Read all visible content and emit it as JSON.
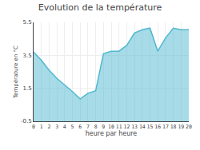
{
  "chart_data": {
    "type": "area",
    "title": "Evolution de la température",
    "xlabel": "heure par heure",
    "ylabel": "Température en °C",
    "x": [
      0,
      1,
      2,
      3,
      4,
      5,
      6,
      7,
      8,
      9,
      10,
      11,
      12,
      13,
      14,
      15,
      16,
      17,
      18,
      19,
      20
    ],
    "values": [
      3.7,
      3.2,
      2.6,
      2.1,
      1.7,
      1.3,
      0.85,
      1.2,
      1.35,
      3.6,
      3.75,
      3.75,
      4.1,
      4.85,
      5.05,
      5.15,
      3.75,
      4.55,
      5.15,
      5.05,
      5.05
    ],
    "color": "#50b8d0",
    "xlim": [
      0,
      20
    ],
    "xticks": [
      0,
      1,
      2,
      3,
      4,
      5,
      6,
      7,
      8,
      9,
      10,
      11,
      12,
      13,
      14,
      15,
      16,
      17,
      18,
      19,
      20
    ],
    "ylim": [
      -0.5,
      5.5
    ],
    "yticks": [
      -0.5,
      1.5,
      3.5,
      5.5
    ],
    "grid": true
  }
}
